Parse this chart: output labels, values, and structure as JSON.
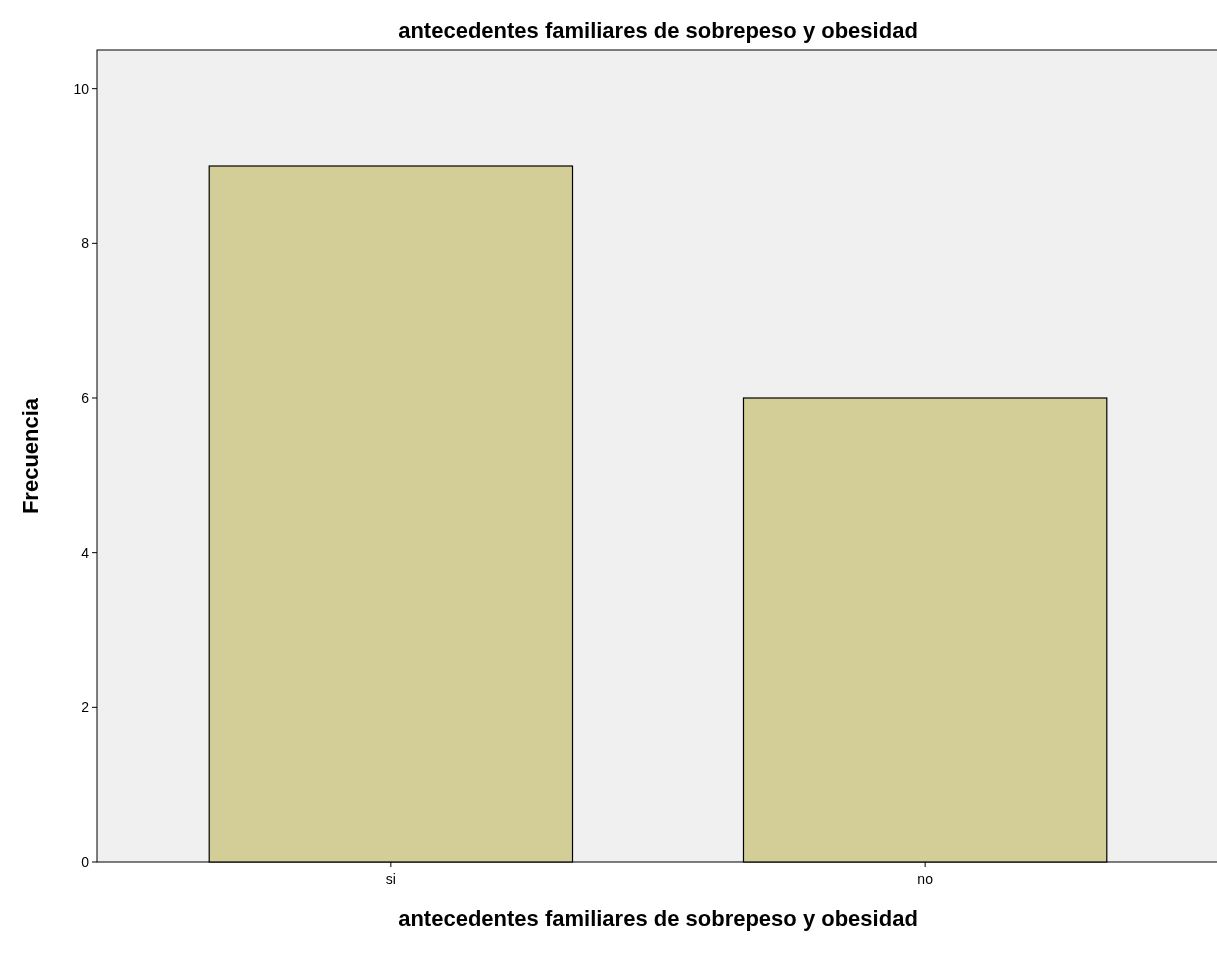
{
  "chart_data": {
    "type": "bar",
    "title": "antecedentes familiares de sobrepeso y obesidad",
    "xlabel": "antecedentes familiares de sobrepeso y obesidad",
    "ylabel": "Frecuencia",
    "categories": [
      "si",
      "no"
    ],
    "values": [
      9,
      6
    ],
    "color": "#d3ce97",
    "ylim": [
      0,
      10.5
    ],
    "yticks": [
      0,
      2,
      4,
      6,
      8,
      10
    ],
    "grid": false
  }
}
